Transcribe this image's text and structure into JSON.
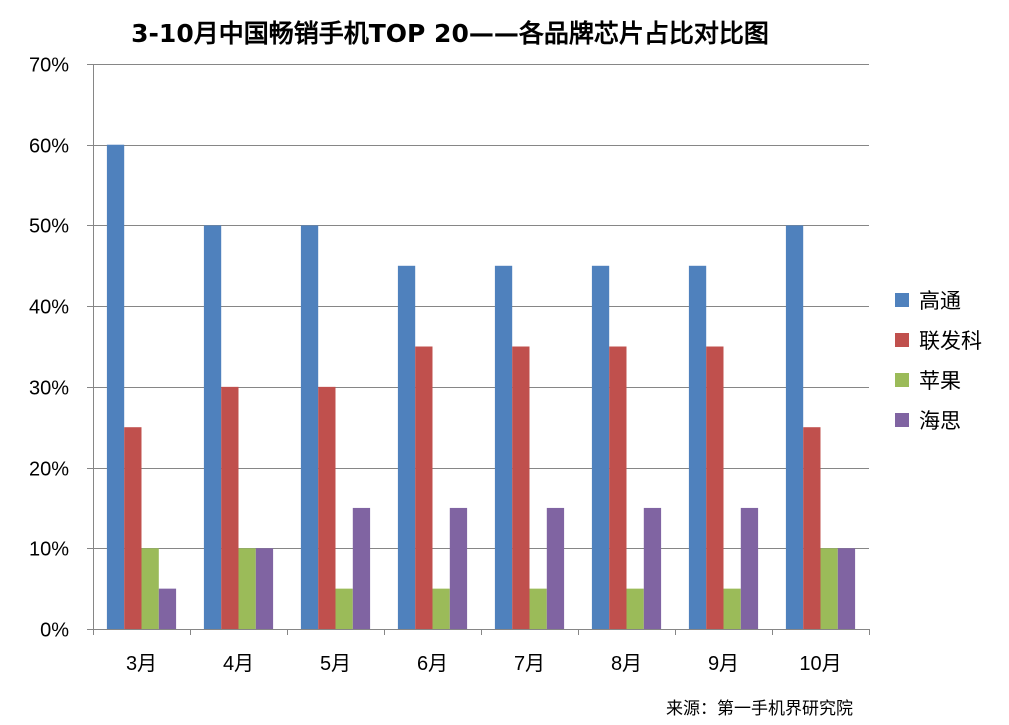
{
  "chart_data": {
    "type": "bar",
    "title": "3-10月中国畅销手机TOP 20——各品牌芯片占比对比图",
    "categories": [
      "3月",
      "4月",
      "5月",
      "6月",
      "7月",
      "8月",
      "9月",
      "10月"
    ],
    "series": [
      {
        "name": "高通",
        "color": "#4F81BD",
        "values": [
          60,
          50,
          50,
          45,
          45,
          45,
          45,
          50
        ]
      },
      {
        "name": "联发科",
        "color": "#C0504D",
        "values": [
          25,
          30,
          30,
          35,
          35,
          35,
          35,
          25
        ]
      },
      {
        "name": "苹果",
        "color": "#9BBB59",
        "values": [
          10,
          10,
          5,
          5,
          5,
          5,
          5,
          10
        ]
      },
      {
        "name": "海思",
        "color": "#8064A2",
        "values": [
          5,
          10,
          15,
          15,
          15,
          15,
          15,
          10
        ]
      }
    ],
    "ylim": [
      0,
      70
    ],
    "yticks": [
      "0%",
      "10%",
      "20%",
      "30%",
      "40%",
      "50%",
      "60%",
      "70%"
    ],
    "grid": true,
    "legend_position": "right"
  },
  "source_note": "来源：第一手机界研究院"
}
